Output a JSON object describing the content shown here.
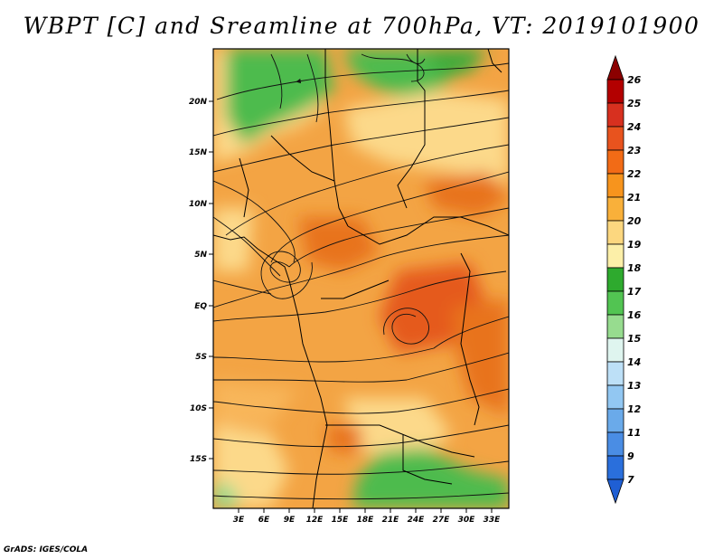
{
  "title": "WBPT [C] and Sreamline at 700hPa, VT: 2019101900",
  "credit": "GrADS: IGES/COLA",
  "map": {
    "lat_labels": [
      "20N",
      "15N",
      "10N",
      "5N",
      "EQ",
      "5S",
      "10S",
      "15S"
    ],
    "lon_labels": [
      "3E",
      "6E",
      "9E",
      "12E",
      "15E",
      "18E",
      "21E",
      "24E",
      "27E",
      "30E",
      "33E"
    ]
  },
  "colorbar": {
    "labels": [
      "26",
      "25",
      "24",
      "23",
      "22",
      "21",
      "20",
      "19",
      "18",
      "17",
      "16",
      "15",
      "14",
      "13",
      "12",
      "11",
      "9",
      "7"
    ],
    "colors": [
      "#8b0000",
      "#b30000",
      "#d7301f",
      "#e8531e",
      "#f26b16",
      "#f7941d",
      "#f9b03a",
      "#fcd77f",
      "#fcefa8",
      "#2eaa2e",
      "#52c452",
      "#97dc8f",
      "#dff5ef",
      "#bde0f7",
      "#92c7f2",
      "#6aaaea",
      "#4a8de4",
      "#2a6fdc"
    ]
  }
}
